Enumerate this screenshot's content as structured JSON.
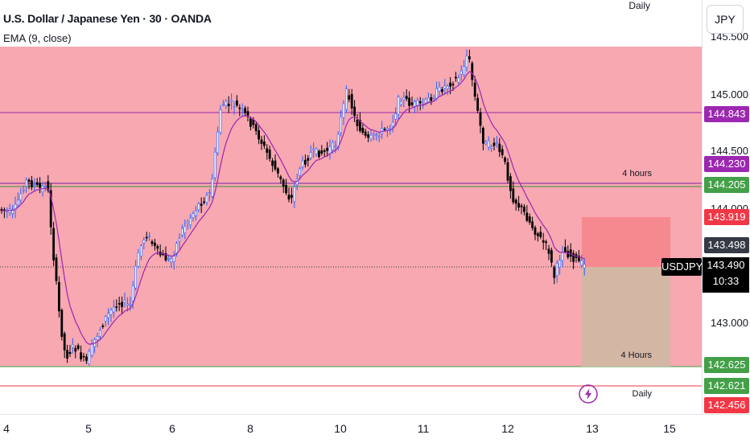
{
  "header": {
    "symbol_title": "U.S. Dollar / Japanese Yen · 30 · OANDA",
    "indicator": "EMA (9, close)",
    "timeframe_top": "Daily"
  },
  "price_axis": {
    "currency": "JPY",
    "ticks": [
      "145.000",
      "144.500",
      "144.000",
      "143.000"
    ],
    "top_tick": "145.500",
    "labels": [
      {
        "value": "144.843",
        "color": "#9c27b0"
      },
      {
        "value": "144.230",
        "color": "#9c27b0"
      },
      {
        "value": "144.205",
        "color": "#43a047"
      },
      {
        "value": "143.919",
        "color": "#f23645"
      },
      {
        "value": "143.498",
        "color": "#363a45"
      },
      {
        "value": "142.625",
        "color": "#43a047"
      },
      {
        "value": "142.621",
        "color": "#43a047"
      },
      {
        "value": "142.456",
        "color": "#f23645"
      }
    ],
    "current": {
      "symbol": "USDJPY",
      "price": "143.490",
      "countdown": "10:33"
    }
  },
  "line_labels": {
    "upper": "4 hours",
    "lower": "4 Hours",
    "bottom": "Daily"
  },
  "time_axis": {
    "ticks": [
      "4",
      "5",
      "6",
      "8",
      "10",
      "11",
      "12",
      "13",
      "15"
    ]
  },
  "colors": {
    "zone_fill": "#f7a8b1",
    "long_target": "#d4b6a4",
    "long_stop": "#f6898f",
    "bull_wick": "#2962ff",
    "bear": "#000000",
    "ema": "#9c27b0",
    "level_line": "#9c27b0",
    "daily_line": "#f23645"
  },
  "icons": {
    "alert": "bolt-icon"
  }
}
